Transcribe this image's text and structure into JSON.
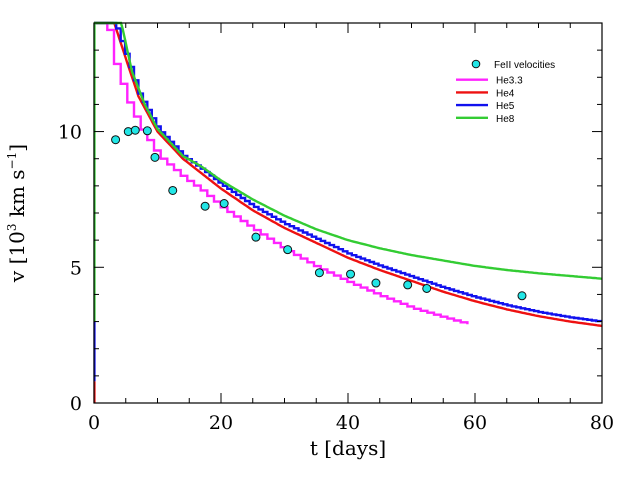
{
  "chart_data": {
    "type": "line",
    "title": "",
    "xlabel": "t [days]",
    "ylabel": "v [10^3 km s^-1]",
    "ylabel_parts": {
      "main": "v [10",
      "sup1": "3",
      "mid": " km s",
      "sup2": "−1",
      "end": "]"
    },
    "xlim": [
      0,
      80
    ],
    "ylim": [
      0,
      14
    ],
    "xticks": [
      0,
      20,
      40,
      60,
      80
    ],
    "xtick_labels": [
      "0",
      "20",
      "40",
      "60",
      "80"
    ],
    "xminor_step": 5,
    "yticks": [
      0,
      5,
      10
    ],
    "ytick_labels": [
      "0",
      "5",
      "10"
    ],
    "yminor_step": 1,
    "grid": false,
    "legend_position": "upper right",
    "legend": [
      {
        "label": "FeII velocities",
        "kind": "marker",
        "color": "#22e6e6"
      },
      {
        "label": "He3.3",
        "kind": "line",
        "color": "#ff22ff"
      },
      {
        "label": "He4",
        "kind": "line",
        "color": "#ee1111"
      },
      {
        "label": "He5",
        "kind": "line",
        "color": "#1111ee"
      },
      {
        "label": "He8",
        "kind": "line",
        "color": "#33cc33"
      }
    ],
    "scatter": {
      "name": "FeII velocities",
      "color": "#22e6e6",
      "x": [
        3.4,
        5.4,
        6.5,
        8.4,
        9.6,
        12.4,
        17.5,
        20.5,
        25.5,
        30.5,
        35.5,
        40.4,
        44.4,
        49.4,
        52.4,
        67.4
      ],
      "y": [
        9.7,
        10.0,
        10.05,
        10.03,
        9.05,
        7.83,
        7.25,
        7.35,
        6.11,
        5.65,
        4.8,
        4.75,
        4.42,
        4.35,
        4.22,
        3.95
      ]
    },
    "series": [
      {
        "name": "He3.3",
        "color": "#ff22ff",
        "stepped": true,
        "x": [
          0,
          1.9,
          3,
          5,
          7,
          10,
          14,
          17,
          20,
          25,
          30,
          35,
          40,
          45,
          50,
          55,
          59.8
        ],
        "y": [
          14,
          14,
          12.6,
          11.2,
          10.2,
          9.1,
          8.3,
          7.8,
          7.2,
          6.4,
          5.65,
          5.0,
          4.45,
          3.95,
          3.5,
          3.15,
          2.84
        ]
      },
      {
        "name": "He4",
        "color": "#ee1111",
        "stepped": false,
        "x": [
          0,
          3.2,
          5,
          7,
          10,
          14,
          17,
          20,
          25,
          30,
          35,
          40,
          45,
          50,
          55,
          60,
          65,
          70,
          75,
          80
        ],
        "y": [
          14,
          14,
          12.7,
          11.3,
          10.0,
          9.0,
          8.45,
          7.9,
          7.1,
          6.45,
          5.9,
          5.35,
          4.9,
          4.5,
          4.1,
          3.75,
          3.45,
          3.2,
          3.0,
          2.84
        ]
      },
      {
        "name": "He5",
        "color": "#1111ee",
        "stepped": true,
        "x": [
          0,
          3.2,
          5,
          7,
          10,
          14,
          17,
          20,
          25,
          30,
          35,
          40,
          45,
          50,
          55,
          60,
          65,
          70,
          75,
          80
        ],
        "y": [
          14,
          14,
          12.8,
          11.4,
          10.1,
          9.1,
          8.6,
          8.05,
          7.25,
          6.6,
          6.05,
          5.5,
          5.05,
          4.65,
          4.25,
          3.9,
          3.6,
          3.35,
          3.15,
          2.99
        ]
      },
      {
        "name": "He8",
        "color": "#33cc33",
        "stepped": false,
        "x": [
          0,
          4.3,
          6,
          8,
          10,
          14,
          17,
          20,
          25,
          30,
          35,
          40,
          45,
          50,
          55,
          60,
          65,
          70,
          75,
          80
        ],
        "y": [
          14,
          14,
          12.2,
          11.0,
          10.1,
          9.1,
          8.7,
          8.2,
          7.5,
          6.9,
          6.4,
          6.0,
          5.7,
          5.45,
          5.25,
          5.05,
          4.9,
          4.78,
          4.68,
          4.58
        ]
      }
    ],
    "initial_vertical_segments": [
      {
        "name": "He4",
        "color": "#ee1111",
        "y": [
          0,
          0.8
        ]
      },
      {
        "name": "He5",
        "color": "#1111ee",
        "y": [
          0.8,
          3.0
        ]
      },
      {
        "name": "He8",
        "color": "#33cc33",
        "y": [
          3.0,
          14
        ]
      }
    ]
  }
}
